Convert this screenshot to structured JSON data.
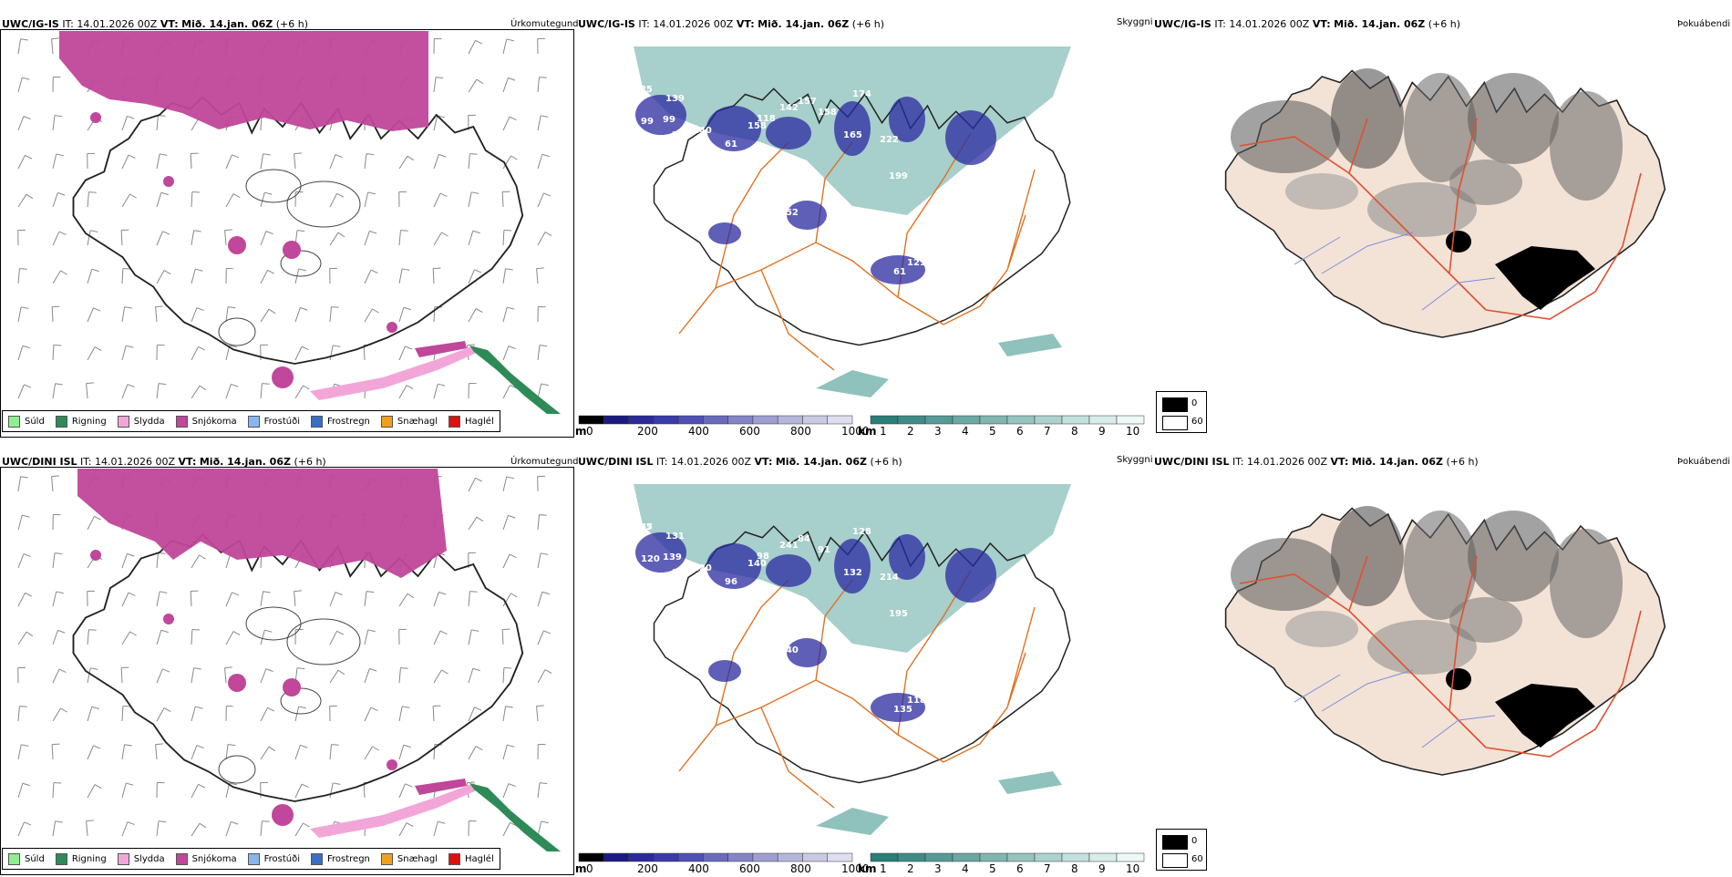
{
  "rows": [
    {
      "model": "UWC/IG-IS",
      "panels": {
        "precip": {
          "it_label": "IT:",
          "it_value": "14.01.2026 00Z",
          "vt_label": "VT:",
          "vt_value": "Mið. 14.jan. 06Z",
          "lead": "(+6 h)",
          "title": "Úrkomutegund"
        },
        "vis": {
          "it_label": "IT:",
          "it_value": "14.01.2026 00Z",
          "vt_label": "VT:",
          "vt_value": "Mið. 14.jan. 06Z",
          "lead": "(+6 h)",
          "title": "Skyggni"
        },
        "fog": {
          "it_label": "IT:",
          "it_value": "14.01.2026 00Z",
          "vt_label": "VT:",
          "vt_value": "Mið. 14.jan. 06Z",
          "lead": "(+6 h)",
          "title": "Þokuábendi"
        }
      },
      "cloud_labels": [
        "125",
        "139",
        "99",
        "99",
        "206",
        "140",
        "158",
        "118",
        "142",
        "157",
        "158",
        "174",
        "165",
        "222",
        "61",
        "96",
        "99",
        "111",
        "152",
        "133",
        "240",
        "135",
        "121",
        "61",
        "135",
        "199",
        "105"
      ]
    },
    {
      "model": "UWC/DINI ISL",
      "panels": {
        "precip": {
          "it_label": "IT:",
          "it_value": "14.01.2026 00Z",
          "vt_label": "VT:",
          "vt_value": "Mið. 14.jan. 06Z",
          "lead": "(+6 h)",
          "title": "Úrkomutegund"
        },
        "vis": {
          "it_label": "IT:",
          "it_value": "14.01.2026 00Z",
          "vt_label": "VT:",
          "vt_value": "Mið. 14.jan. 06Z",
          "lead": "(+6 h)",
          "title": "Skyggni"
        },
        "fog": {
          "it_label": "IT:",
          "it_value": "14.01.2026 00Z",
          "vt_label": "VT:",
          "vt_value": "Mið. 14.jan. 06Z",
          "lead": "(+6 h)",
          "title": "Þokuábendi"
        }
      },
      "cloud_labels": [
        "137",
        "131",
        "120",
        "139",
        "108",
        "120",
        "140",
        "98",
        "241",
        "84",
        "91",
        "128",
        "132",
        "214",
        "96",
        "82",
        "90",
        "177",
        "240",
        "98",
        "166",
        "205",
        "118",
        "135",
        "140",
        "195",
        "128",
        "185"
      ]
    }
  ],
  "precip_legend": [
    {
      "label": "Súld",
      "color": "#90ee90"
    },
    {
      "label": "Rigning",
      "color": "#2e8b57"
    },
    {
      "label": "Slydda",
      "color": "#f2a6d8"
    },
    {
      "label": "Snjókoma",
      "color": "#c0479a"
    },
    {
      "label": "Frostúði",
      "color": "#8ab6ef"
    },
    {
      "label": "Frostregn",
      "color": "#3a6fc4"
    },
    {
      "label": "Snæhagl",
      "color": "#f0a020"
    },
    {
      "label": "Haglél",
      "color": "#e01010"
    }
  ],
  "cloud_base_scale": {
    "unit": "m",
    "ticks": [
      "0",
      "200",
      "400",
      "600",
      "800",
      "1000"
    ],
    "colors": [
      "#000000",
      "#1a1a80",
      "#2a2a9a",
      "#3a3aa8",
      "#5050b4",
      "#6a6abd",
      "#8484c8",
      "#9e9ed2",
      "#b6b6dc",
      "#cacae6",
      "#dedef0"
    ]
  },
  "visibility_scale": {
    "unit": "km",
    "ticks": [
      "1",
      "2",
      "3",
      "4",
      "5",
      "6",
      "7",
      "8",
      "9",
      "10"
    ],
    "colors": [
      "#2a7f78",
      "#3f8c86",
      "#559a94",
      "#6aa8a2",
      "#80b6b0",
      "#96c4bf",
      "#acd2cd",
      "#c2e0dc",
      "#d8edea",
      "#eef8f6"
    ]
  },
  "fog_key": [
    {
      "label": "0",
      "color": "#000000"
    },
    {
      "label": "60",
      "color": "#ffffff"
    }
  ],
  "colors": {
    "snow": "#c0479a",
    "sleet": "#f2a6d8",
    "rain": "#2e8b57",
    "cloudbase": "#2a2aa0",
    "visibility": "#5fa8a0",
    "road": "#e07020",
    "fogland": "#f3e3d6",
    "fogroad": "#e05030",
    "river": "#7a8ee0"
  }
}
